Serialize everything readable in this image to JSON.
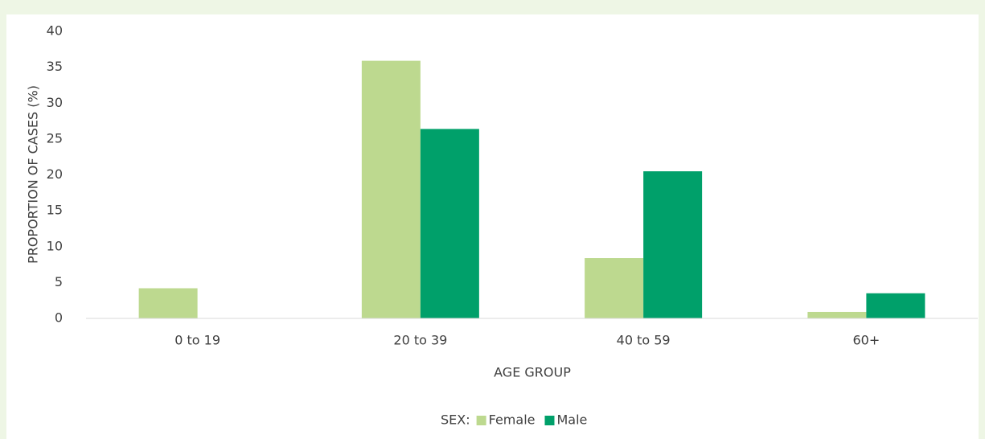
{
  "chart_data": {
    "type": "bar",
    "y_label": "PROPORTION OF CASES (%)",
    "x_label": "AGE GROUP",
    "legend_title": "SEX:",
    "categories": [
      "0 to 19",
      "20 to 39",
      "40 to 59",
      "60+"
    ],
    "series": [
      {
        "name": "Female",
        "color": "#bdd98f",
        "values": [
          4.2,
          35.9,
          8.4,
          0.9
        ]
      },
      {
        "name": "Male",
        "color": "#00a06a",
        "values": [
          0,
          26.4,
          20.5,
          3.5
        ]
      }
    ],
    "ylim": [
      0,
      40
    ],
    "yticks": [
      0,
      5,
      10,
      15,
      20,
      25,
      30,
      35,
      40
    ],
    "legend": "bottom"
  }
}
